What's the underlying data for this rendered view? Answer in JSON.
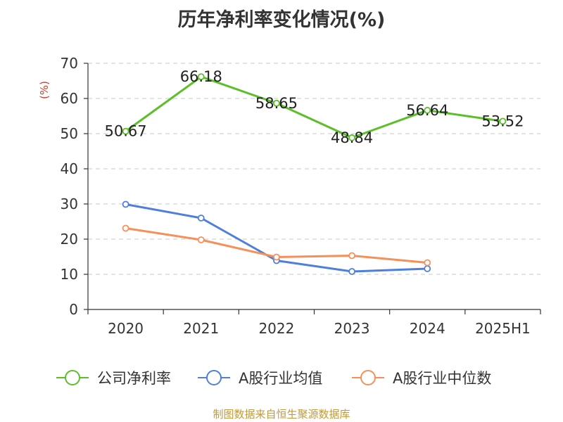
{
  "chart_data": {
    "type": "line",
    "title": "历年净利率变化情况(%)",
    "ylabel": "(%)",
    "categories": [
      "2020",
      "2021",
      "2022",
      "2023",
      "2024",
      "2025H1"
    ],
    "ylim": [
      0,
      70
    ],
    "yticks": [
      0,
      10,
      20,
      30,
      40,
      50,
      60,
      70
    ],
    "grid": true,
    "legend_position": "bottom",
    "series": [
      {
        "name": "公司净利率",
        "color": "#5cbf2a",
        "values": [
          50.67,
          66.18,
          58.65,
          48.84,
          56.64,
          53.52
        ],
        "labels": [
          "50.67",
          "66.18",
          "58.65",
          "48.84",
          "56.64",
          "53.52"
        ]
      },
      {
        "name": "A股行业均值",
        "color": "#4e7fdc",
        "values": [
          29.9,
          26.0,
          13.9,
          10.8,
          11.6,
          null
        ]
      },
      {
        "name": "A股行业中位数",
        "color": "#f5905a",
        "values": [
          23.1,
          19.8,
          14.9,
          15.3,
          13.3,
          null
        ]
      }
    ]
  },
  "footer": "制图数据来自恒生聚源数据库"
}
